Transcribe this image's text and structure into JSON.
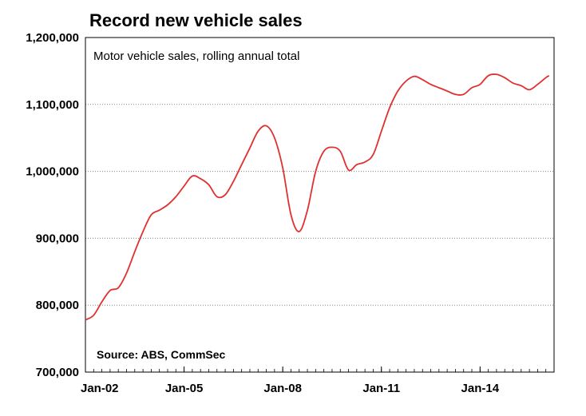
{
  "chart_data": {
    "type": "line",
    "title": "Record new vehicle sales",
    "subtitle": "Motor vehicle sales, rolling annual total",
    "source": "Source:  ABS, CommSec",
    "ylim": [
      700000,
      1200000
    ],
    "yticks": [
      700000,
      800000,
      900000,
      1000000,
      1100000,
      1200000
    ],
    "ytick_labels": [
      "700,000",
      "800,000",
      "900,000",
      "1,000,000",
      "1,100,000",
      "1,200,000"
    ],
    "xlim": [
      2002.0,
      2016.25
    ],
    "xticks": [
      2002,
      2005,
      2008,
      2011,
      2014
    ],
    "xtick_labels": [
      "Jan-02",
      "Jan-05",
      "Jan-08",
      "Jan-11",
      "Jan-14"
    ],
    "grid": true,
    "line_color": "#e03030",
    "series": [
      {
        "x": [
          2002.0,
          2002.25,
          2002.5,
          2002.75,
          2003.0,
          2003.25,
          2003.5,
          2003.75,
          2004.0,
          2004.25,
          2004.5,
          2004.75,
          2005.0,
          2005.25,
          2005.5,
          2005.75,
          2006.0,
          2006.25,
          2006.5,
          2006.75,
          2007.0,
          2007.25,
          2007.5,
          2007.75,
          2008.0,
          2008.25,
          2008.5,
          2008.75,
          2009.0,
          2009.25,
          2009.5,
          2009.75,
          2010.0,
          2010.25,
          2010.5,
          2010.75,
          2011.0,
          2011.25,
          2011.5,
          2011.75,
          2012.0,
          2012.25,
          2012.5,
          2012.75,
          2013.0,
          2013.25,
          2013.5,
          2013.75,
          2014.0,
          2014.25,
          2014.5,
          2014.75,
          2015.0,
          2015.25,
          2015.5,
          2015.75,
          2016.0,
          2016.1
        ],
        "values": [
          778000,
          785000,
          805000,
          822000,
          826000,
          848000,
          880000,
          910000,
          935000,
          942000,
          950000,
          962000,
          978000,
          993000,
          989000,
          980000,
          962000,
          965000,
          985000,
          1010000,
          1035000,
          1060000,
          1068000,
          1050000,
          1005000,
          935000,
          910000,
          942000,
          1000000,
          1030000,
          1036000,
          1030000,
          1002000,
          1010000,
          1014000,
          1025000,
          1060000,
          1095000,
          1120000,
          1135000,
          1142000,
          1137000,
          1130000,
          1125000,
          1120000,
          1115000,
          1115000,
          1125000,
          1130000,
          1143000,
          1145000,
          1140000,
          1132000,
          1128000,
          1122000,
          1130000,
          1140000,
          1143000
        ]
      }
    ]
  }
}
